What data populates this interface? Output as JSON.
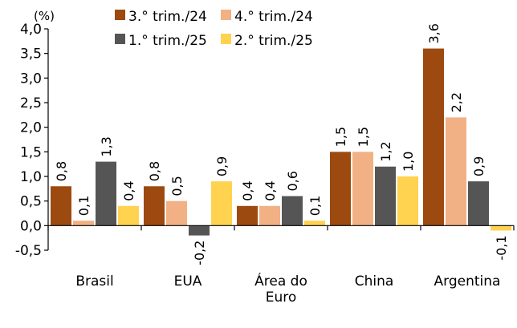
{
  "chart_data": {
    "type": "bar",
    "unit_label": "(%)",
    "categories": [
      {
        "lines": [
          "Brasil"
        ]
      },
      {
        "lines": [
          "EUA"
        ]
      },
      {
        "lines": [
          "Área do",
          "Euro"
        ]
      },
      {
        "lines": [
          "China"
        ]
      },
      {
        "lines": [
          "Argentina"
        ]
      }
    ],
    "series": [
      {
        "name": "3.° trim./24",
        "color": "#9c4a10",
        "values": [
          0.8,
          0.8,
          0.4,
          1.5,
          3.6
        ],
        "labels": [
          "0,8",
          "0,8",
          "0,4",
          "1,5",
          "3,6"
        ]
      },
      {
        "name": "4.° trim./24",
        "color": "#f2b184",
        "values": [
          0.1,
          0.5,
          0.4,
          1.5,
          2.2
        ],
        "labels": [
          "0,1",
          "0,5",
          "0,4",
          "1,5",
          "2,2"
        ]
      },
      {
        "name": "1.° trim./25",
        "color": "#555555",
        "values": [
          1.3,
          -0.2,
          0.6,
          1.2,
          0.9
        ],
        "labels": [
          "1,3",
          "-0,2",
          "0,6",
          "1,2",
          "0,9"
        ]
      },
      {
        "name": "2.° trim./25",
        "color": "#ffd24f",
        "values": [
          0.4,
          0.9,
          0.1,
          1.0,
          -0.1
        ],
        "labels": [
          "0,4",
          "0,9",
          "0,1",
          "1,0",
          "-0,1"
        ]
      }
    ],
    "y_ticks": [
      {
        "value": 4.0,
        "label": "4,0"
      },
      {
        "value": 3.5,
        "label": "3,5"
      },
      {
        "value": 3.0,
        "label": "3,0"
      },
      {
        "value": 2.5,
        "label": "2,5"
      },
      {
        "value": 2.0,
        "label": "2,0"
      },
      {
        "value": 1.5,
        "label": "1,5"
      },
      {
        "value": 1.0,
        "label": "1,0"
      },
      {
        "value": 0.5,
        "label": "0,5"
      },
      {
        "value": 0.0,
        "label": "0,0"
      },
      {
        "value": -0.5,
        "label": "-0,5"
      }
    ],
    "ylim": [
      -0.5,
      4.0
    ],
    "grid": false,
    "legend_position": "top"
  }
}
